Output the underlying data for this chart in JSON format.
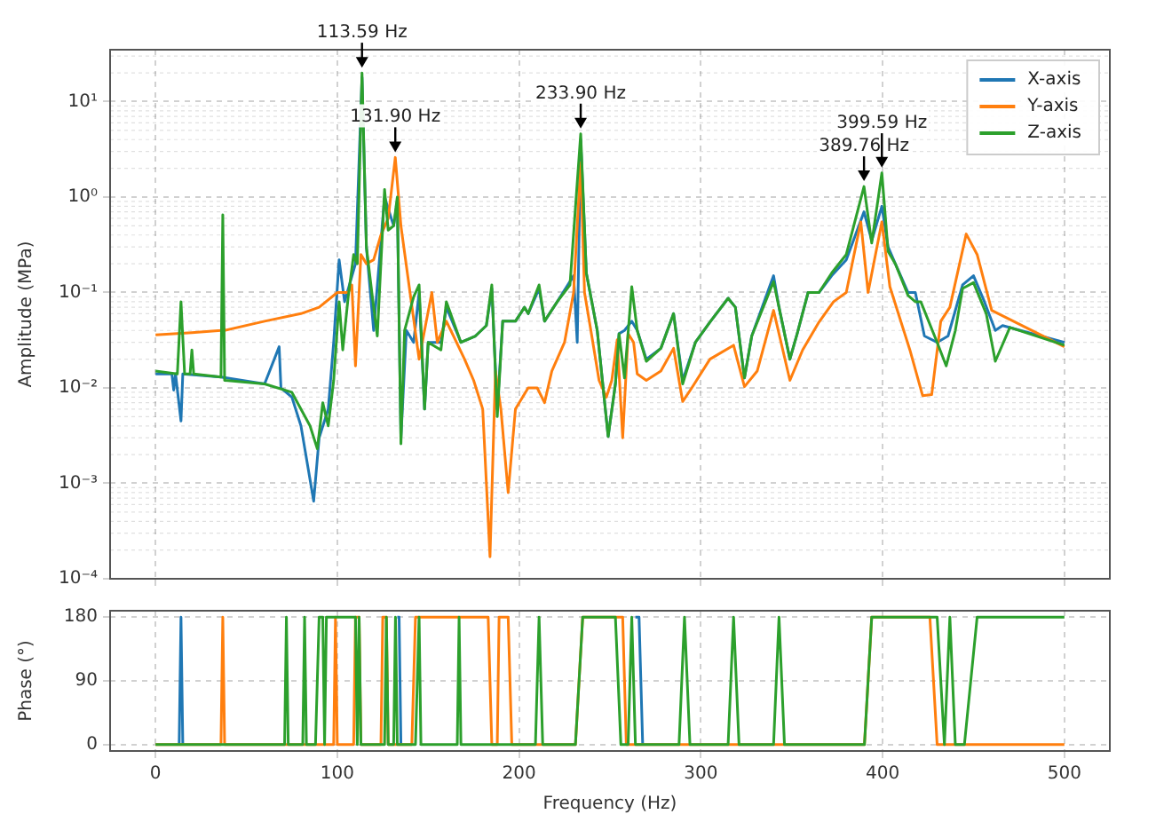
{
  "chart_data": [
    {
      "type": "line",
      "ylabel": "Amplitude (MPa)",
      "log": "y",
      "grid": true,
      "legend": "top right",
      "tick_labels": "y",
      "marker": "none",
      "xlim": [
        -25,
        525
      ],
      "xticks": [
        0,
        100,
        200,
        300,
        400,
        500
      ],
      "ylim": [
        0.0001,
        35
      ],
      "yticks": [
        {
          "value": 0.0001,
          "label": "10⁻⁴"
        },
        {
          "value": 0.001,
          "label": "10⁻³"
        },
        {
          "value": 0.01,
          "label": "10⁻²"
        },
        {
          "value": 0.1,
          "label": "10⁻¹"
        },
        {
          "value": 1,
          "label": "10⁰"
        },
        {
          "value": 10,
          "label": "10¹"
        }
      ],
      "annotations": [
        {
          "text": "113.59 Hz",
          "x": 113.59,
          "y": 20
        },
        {
          "text": "131.90 Hz",
          "x": 131.9,
          "y": 2.6
        },
        {
          "text": "233.90 Hz",
          "x": 233.9,
          "y": 4.6
        },
        {
          "text": "389.76 Hz",
          "x": 389.76,
          "y": 1.29
        },
        {
          "text": "399.59 Hz",
          "x": 399.59,
          "y": 1.79
        }
      ],
      "series": [
        {
          "name": "X-axis",
          "color": "#1f77b4",
          "x": [
            0,
            9,
            10,
            11,
            14,
            15,
            36,
            60,
            68,
            69,
            75,
            80,
            87,
            90,
            95,
            98,
            101,
            104,
            110,
            113.59,
            116,
            120,
            126,
            131,
            133,
            135,
            138,
            142,
            145,
            148,
            150,
            157,
            160,
            168,
            176,
            182,
            185,
            188,
            191,
            198,
            203,
            205,
            211,
            214,
            221,
            230,
            232,
            233.9,
            237,
            243,
            249,
            253,
            255,
            258,
            262,
            265,
            270,
            278,
            285,
            290,
            297,
            305,
            315,
            319,
            324,
            328,
            340,
            343,
            349,
            353,
            359,
            365,
            372,
            380,
            389.76,
            394,
            399.59,
            403,
            407,
            414,
            418,
            423,
            430,
            436,
            444,
            450,
            456,
            462,
            466,
            500
          ],
          "values": [
            0.014,
            0.014,
            0.0095,
            0.014,
            0.0045,
            0.014,
            0.013,
            0.011,
            0.027,
            0.01,
            0.008,
            0.004,
            0.00065,
            0.003,
            0.006,
            0.03,
            0.22,
            0.08,
            0.2,
            18,
            0.3,
            0.04,
            1.0,
            0.5,
            0.9,
            0.003,
            0.04,
            0.03,
            0.1,
            0.006,
            0.03,
            0.03,
            0.07,
            0.03,
            0.035,
            0.045,
            0.11,
            0.006,
            0.05,
            0.05,
            0.07,
            0.06,
            0.11,
            0.05,
            0.08,
            0.15,
            0.03,
            4.0,
            0.16,
            0.04,
            0.0031,
            0.011,
            0.037,
            0.04,
            0.05,
            0.04,
            0.02,
            0.026,
            0.06,
            0.012,
            0.03,
            0.049,
            0.087,
            0.07,
            0.0127,
            0.035,
            0.15,
            0.07,
            0.02,
            0.037,
            0.1,
            0.1,
            0.15,
            0.22,
            0.7,
            0.35,
            0.8,
            0.3,
            0.2,
            0.1,
            0.1,
            0.035,
            0.03,
            0.035,
            0.12,
            0.15,
            0.08,
            0.04,
            0.045,
            0.03
          ]
        },
        {
          "name": "Y-axis",
          "color": "#ff7f0e",
          "x": [
            0,
            20,
            36,
            37,
            38,
            60,
            80,
            90,
            100,
            106,
            108,
            110,
            113,
            116,
            120,
            124,
            128,
            131.9,
            135,
            140,
            145,
            148,
            152,
            155,
            160,
            170,
            175,
            180,
            184,
            187,
            190,
            194,
            198,
            205,
            210,
            214,
            218,
            225,
            230,
            233.9,
            236,
            240,
            244,
            248,
            251,
            254,
            257,
            260,
            263,
            265,
            270,
            278,
            285,
            290,
            295,
            305,
            318,
            324,
            331,
            340,
            349,
            356,
            365,
            373,
            380,
            388,
            392,
            399.59,
            404,
            415,
            422,
            427,
            432,
            437,
            446,
            452,
            460,
            500
          ],
          "values": [
            0.036,
            0.038,
            0.04,
            0.045,
            0.04,
            0.05,
            0.06,
            0.07,
            0.1,
            0.1,
            0.12,
            0.017,
            0.25,
            0.2,
            0.22,
            0.4,
            0.6,
            2.6,
            0.5,
            0.1,
            0.02,
            0.04,
            0.1,
            0.03,
            0.05,
            0.02,
            0.012,
            0.006,
            0.00017,
            0.015,
            0.006,
            0.0008,
            0.006,
            0.01,
            0.01,
            0.007,
            0.015,
            0.03,
            0.1,
            2.3,
            0.1,
            0.035,
            0.012,
            0.008,
            0.012,
            0.032,
            0.003,
            0.037,
            0.03,
            0.014,
            0.012,
            0.015,
            0.026,
            0.0072,
            0.01,
            0.02,
            0.028,
            0.0103,
            0.015,
            0.065,
            0.012,
            0.025,
            0.049,
            0.08,
            0.1,
            0.55,
            0.1,
            0.55,
            0.115,
            0.025,
            0.0083,
            0.0085,
            0.05,
            0.07,
            0.41,
            0.25,
            0.065,
            0.027
          ]
        },
        {
          "name": "Z-axis",
          "color": "#2ca02c",
          "x": [
            0,
            12,
            14,
            16,
            19,
            20,
            21,
            36,
            37,
            38,
            60,
            75,
            85,
            89,
            92,
            95,
            98,
            101,
            103,
            106,
            109,
            111,
            113.59,
            116,
            119,
            122,
            126,
            128,
            131,
            133,
            135,
            137,
            142,
            145,
            148,
            150,
            157,
            160,
            168,
            176,
            182,
            185,
            188,
            191,
            198,
            203,
            205,
            211,
            214,
            221,
            228,
            233.9,
            237,
            243,
            249,
            253,
            255,
            258,
            262,
            265,
            270,
            278,
            285,
            290,
            297,
            305,
            315,
            319,
            324,
            328,
            340,
            343,
            349,
            353,
            359,
            365,
            372,
            380,
            389.76,
            394,
            399.59,
            403,
            407,
            414,
            418,
            421,
            430,
            435,
            440,
            444,
            450,
            457,
            462,
            470,
            500
          ],
          "values": [
            0.015,
            0.014,
            0.08,
            0.014,
            0.014,
            0.025,
            0.014,
            0.013,
            0.65,
            0.012,
            0.011,
            0.009,
            0.004,
            0.0023,
            0.007,
            0.004,
            0.012,
            0.08,
            0.025,
            0.09,
            0.25,
            0.2,
            20,
            0.3,
            0.1,
            0.035,
            1.2,
            0.45,
            0.5,
            1.0,
            0.0026,
            0.04,
            0.09,
            0.12,
            0.006,
            0.03,
            0.025,
            0.08,
            0.03,
            0.035,
            0.045,
            0.12,
            0.005,
            0.05,
            0.05,
            0.07,
            0.06,
            0.12,
            0.05,
            0.08,
            0.12,
            4.6,
            0.16,
            0.04,
            0.0031,
            0.011,
            0.037,
            0.0127,
            0.115,
            0.04,
            0.019,
            0.026,
            0.06,
            0.011,
            0.03,
            0.049,
            0.087,
            0.07,
            0.0127,
            0.035,
            0.13,
            0.07,
            0.02,
            0.037,
            0.1,
            0.1,
            0.16,
            0.25,
            1.29,
            0.33,
            1.79,
            0.27,
            0.2,
            0.093,
            0.08,
            0.08,
            0.03,
            0.017,
            0.04,
            0.11,
            0.127,
            0.06,
            0.019,
            0.043,
            0.028
          ]
        }
      ]
    },
    {
      "type": "line",
      "xlabel": "Frequency (Hz)",
      "ylabel": "Phase (°)",
      "grid": true,
      "marker": "none",
      "xlim": [
        -25,
        525
      ],
      "xticks": [
        0,
        100,
        200,
        300,
        400,
        500
      ],
      "ylim": [
        -9,
        189
      ],
      "yticks": [
        0,
        90,
        180
      ],
      "series": [
        {
          "color": "#1f77b4",
          "x": [
            13,
            14,
            15,
            16,
            133,
            134,
            135,
            136,
            264,
            266,
            268
          ],
          "values": [
            0,
            180,
            0,
            null,
            180,
            180,
            0,
            null,
            180,
            180,
            0
          ]
        },
        {
          "color": "#ff7f0e",
          "x": [
            0,
            36,
            37,
            38,
            98,
            99,
            100,
            109,
            110,
            112,
            113,
            124,
            125,
            127,
            128,
            141,
            143,
            183,
            185,
            188,
            189,
            194,
            196,
            231,
            235,
            253,
            257,
            259,
            390,
            394,
            426,
            430,
            500
          ],
          "values": [
            0,
            0,
            180,
            0,
            0,
            180,
            0,
            0,
            180,
            180,
            0,
            0,
            180,
            180,
            0,
            0,
            180,
            180,
            0,
            0,
            180,
            180,
            0,
            0,
            180,
            180,
            180,
            0,
            0,
            180,
            180,
            0,
            0
          ]
        },
        {
          "color": "#2ca02c",
          "x": [
            0,
            71,
            72,
            73,
            81,
            82,
            83,
            88,
            90,
            92,
            93,
            94,
            110,
            111,
            112,
            113,
            126,
            127,
            128,
            131,
            132,
            133,
            143,
            145,
            146,
            166,
            167,
            168,
            209,
            211,
            213,
            231,
            235,
            253,
            256,
            260,
            262,
            264,
            288,
            291,
            294,
            315,
            318,
            321,
            340,
            343,
            346,
            390,
            394,
            430,
            434,
            437,
            440,
            445,
            452,
            500
          ],
          "values": [
            0,
            0,
            180,
            0,
            0,
            180,
            0,
            0,
            180,
            180,
            0,
            180,
            180,
            0,
            180,
            0,
            0,
            180,
            0,
            0,
            180,
            0,
            0,
            180,
            0,
            0,
            180,
            0,
            0,
            180,
            0,
            0,
            180,
            180,
            0,
            0,
            180,
            0,
            0,
            180,
            0,
            0,
            180,
            0,
            0,
            180,
            0,
            0,
            180,
            180,
            0,
            180,
            0,
            0,
            180,
            180
          ]
        }
      ]
    }
  ]
}
